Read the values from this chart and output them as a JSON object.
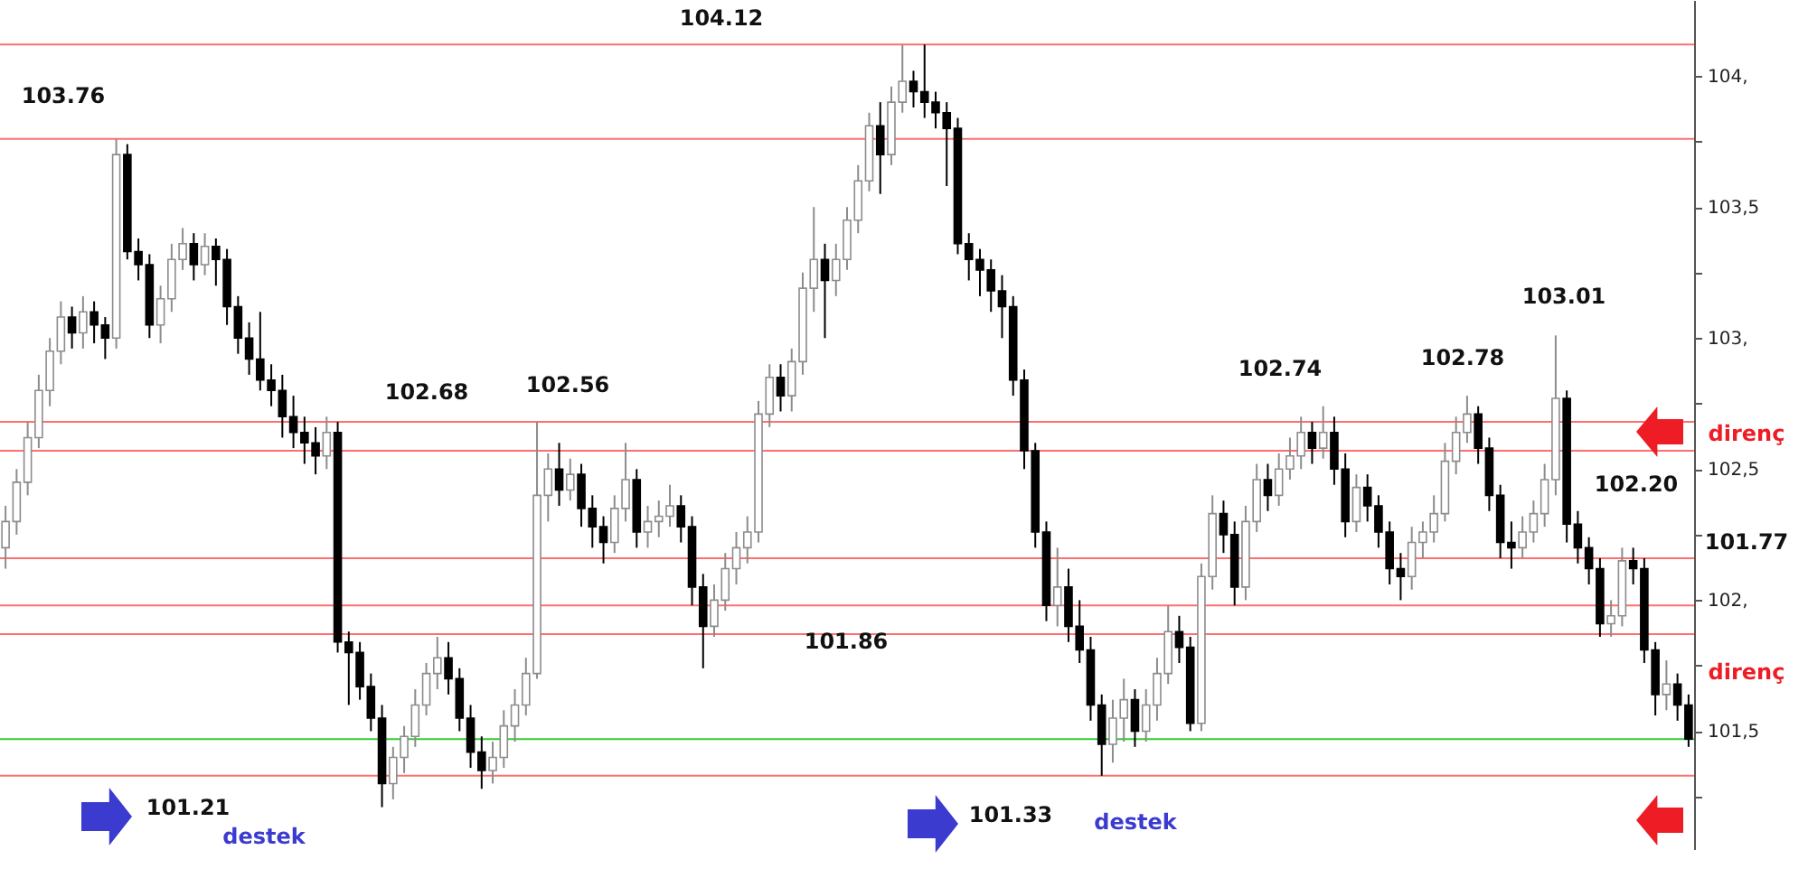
{
  "chart_data": {
    "type": "candlestick",
    "categories": [
      null,
      null,
      null,
      null,
      null,
      null,
      null,
      null,
      null,
      null,
      null,
      null,
      null,
      null,
      null,
      null,
      null,
      null,
      null,
      null,
      null,
      null,
      null,
      null,
      null,
      null,
      null,
      null,
      null,
      null,
      null,
      null,
      null,
      null,
      null,
      null,
      null,
      null,
      null,
      null,
      null,
      null,
      null,
      null,
      null,
      null,
      null,
      null,
      null,
      null,
      null,
      null,
      null,
      null,
      null,
      null,
      null,
      null,
      null,
      null,
      null,
      null,
      null,
      null,
      null,
      null,
      null,
      null,
      null,
      null,
      null,
      null,
      null,
      null,
      null,
      null,
      null,
      null,
      null,
      null,
      null,
      null,
      null,
      null,
      null,
      null,
      null,
      null,
      null,
      null,
      null,
      null,
      null,
      null,
      null,
      null,
      null,
      null,
      null,
      null,
      null,
      null,
      null,
      null,
      null,
      null,
      null,
      null,
      null,
      null,
      null,
      null,
      null,
      null,
      null,
      null,
      null,
      null,
      null,
      null,
      null,
      null,
      null,
      null,
      null,
      null,
      null,
      null,
      null,
      null,
      null,
      null,
      null,
      null,
      null,
      null,
      null,
      null,
      null,
      null,
      null,
      null,
      null,
      null,
      null,
      null,
      null,
      null,
      null,
      null,
      null,
      null,
      null
    ],
    "ohlc": [
      [
        102.2,
        102.36,
        102.12,
        102.3
      ],
      [
        102.3,
        102.5,
        102.25,
        102.45
      ],
      [
        102.45,
        102.68,
        102.4,
        102.62
      ],
      [
        102.62,
        102.86,
        102.58,
        102.8
      ],
      [
        102.8,
        103.0,
        102.74,
        102.95
      ],
      [
        102.95,
        103.14,
        102.9,
        103.08
      ],
      [
        103.08,
        103.12,
        102.96,
        103.02
      ],
      [
        103.02,
        103.16,
        102.96,
        103.1
      ],
      [
        103.1,
        103.14,
        102.98,
        103.05
      ],
      [
        103.05,
        103.08,
        102.92,
        103.0
      ],
      [
        103.0,
        103.76,
        102.96,
        103.7
      ],
      [
        103.7,
        103.74,
        103.3,
        103.33
      ],
      [
        103.33,
        103.38,
        103.22,
        103.28
      ],
      [
        103.28,
        103.32,
        103.0,
        103.05
      ],
      [
        103.05,
        103.2,
        102.98,
        103.15
      ],
      [
        103.15,
        103.36,
        103.1,
        103.3
      ],
      [
        103.3,
        103.42,
        103.26,
        103.36
      ],
      [
        103.36,
        103.4,
        103.22,
        103.28
      ],
      [
        103.28,
        103.4,
        103.24,
        103.35
      ],
      [
        103.35,
        103.38,
        103.2,
        103.3
      ],
      [
        103.3,
        103.34,
        103.05,
        103.12
      ],
      [
        103.12,
        103.16,
        102.94,
        103.0
      ],
      [
        103.0,
        103.06,
        102.86,
        102.92
      ],
      [
        102.92,
        103.1,
        102.8,
        102.84
      ],
      [
        102.84,
        102.9,
        102.74,
        102.8
      ],
      [
        102.8,
        102.86,
        102.62,
        102.7
      ],
      [
        102.7,
        102.78,
        102.58,
        102.64
      ],
      [
        102.64,
        102.7,
        102.52,
        102.6
      ],
      [
        102.6,
        102.66,
        102.48,
        102.55
      ],
      [
        102.55,
        102.7,
        102.5,
        102.64
      ],
      [
        102.64,
        102.68,
        101.8,
        101.84
      ],
      [
        101.84,
        101.88,
        101.6,
        101.8
      ],
      [
        101.8,
        101.84,
        101.62,
        101.67
      ],
      [
        101.67,
        101.72,
        101.5,
        101.55
      ],
      [
        101.55,
        101.6,
        101.21,
        101.3
      ],
      [
        101.3,
        101.44,
        101.24,
        101.4
      ],
      [
        101.4,
        101.52,
        101.34,
        101.48
      ],
      [
        101.48,
        101.66,
        101.44,
        101.6
      ],
      [
        101.6,
        101.76,
        101.56,
        101.72
      ],
      [
        101.72,
        101.86,
        101.66,
        101.78
      ],
      [
        101.78,
        101.84,
        101.64,
        101.7
      ],
      [
        101.7,
        101.74,
        101.5,
        101.55
      ],
      [
        101.55,
        101.6,
        101.36,
        101.42
      ],
      [
        101.42,
        101.48,
        101.28,
        101.35
      ],
      [
        101.35,
        101.46,
        101.3,
        101.4
      ],
      [
        101.4,
        101.58,
        101.36,
        101.52
      ],
      [
        101.52,
        101.66,
        101.46,
        101.6
      ],
      [
        101.6,
        101.78,
        101.56,
        101.72
      ],
      [
        101.72,
        102.68,
        101.7,
        102.4
      ],
      [
        102.4,
        102.56,
        102.3,
        102.5
      ],
      [
        102.5,
        102.6,
        102.36,
        102.42
      ],
      [
        102.42,
        102.54,
        102.38,
        102.48
      ],
      [
        102.48,
        102.52,
        102.28,
        102.35
      ],
      [
        102.35,
        102.4,
        102.2,
        102.28
      ],
      [
        102.28,
        102.32,
        102.14,
        102.22
      ],
      [
        102.22,
        102.4,
        102.18,
        102.35
      ],
      [
        102.35,
        102.6,
        102.3,
        102.46
      ],
      [
        102.46,
        102.5,
        102.2,
        102.26
      ],
      [
        102.26,
        102.36,
        102.2,
        102.3
      ],
      [
        102.3,
        102.38,
        102.24,
        102.32
      ],
      [
        102.32,
        102.44,
        102.28,
        102.36
      ],
      [
        102.36,
        102.4,
        102.22,
        102.28
      ],
      [
        102.28,
        102.32,
        101.98,
        102.05
      ],
      [
        102.05,
        102.1,
        101.74,
        101.9
      ],
      [
        101.9,
        102.06,
        101.86,
        102.0
      ],
      [
        102.0,
        102.18,
        101.96,
        102.12
      ],
      [
        102.12,
        102.26,
        102.06,
        102.2
      ],
      [
        102.2,
        102.32,
        102.14,
        102.26
      ],
      [
        102.26,
        102.76,
        102.22,
        102.71
      ],
      [
        102.71,
        102.9,
        102.66,
        102.85
      ],
      [
        102.85,
        102.9,
        102.72,
        102.78
      ],
      [
        102.78,
        102.96,
        102.72,
        102.91
      ],
      [
        102.91,
        103.25,
        102.86,
        103.19
      ],
      [
        103.19,
        103.5,
        103.1,
        103.3
      ],
      [
        103.3,
        103.36,
        103.0,
        103.22
      ],
      [
        103.22,
        103.36,
        103.16,
        103.3
      ],
      [
        103.3,
        103.5,
        103.26,
        103.45
      ],
      [
        103.45,
        103.66,
        103.4,
        103.6
      ],
      [
        103.6,
        103.86,
        103.56,
        103.81
      ],
      [
        103.81,
        103.9,
        103.55,
        103.7
      ],
      [
        103.7,
        103.96,
        103.66,
        103.9
      ],
      [
        103.9,
        104.12,
        103.86,
        103.98
      ],
      [
        103.98,
        104.02,
        103.88,
        103.94
      ],
      [
        103.94,
        104.12,
        103.84,
        103.9
      ],
      [
        103.9,
        103.94,
        103.8,
        103.86
      ],
      [
        103.86,
        103.9,
        103.58,
        103.8
      ],
      [
        103.8,
        103.84,
        103.32,
        103.36
      ],
      [
        103.36,
        103.4,
        103.22,
        103.3
      ],
      [
        103.3,
        103.34,
        103.16,
        103.26
      ],
      [
        103.26,
        103.3,
        103.1,
        103.18
      ],
      [
        103.18,
        103.24,
        103.0,
        103.12
      ],
      [
        103.12,
        103.16,
        102.78,
        102.84
      ],
      [
        102.84,
        102.88,
        102.5,
        102.57
      ],
      [
        102.57,
        102.6,
        102.2,
        102.26
      ],
      [
        102.26,
        102.3,
        101.92,
        101.98
      ],
      [
        101.98,
        102.2,
        101.9,
        102.05
      ],
      [
        102.05,
        102.12,
        101.84,
        101.9
      ],
      [
        101.9,
        102.0,
        101.76,
        101.81
      ],
      [
        101.81,
        101.86,
        101.54,
        101.6
      ],
      [
        101.6,
        101.64,
        101.33,
        101.45
      ],
      [
        101.45,
        101.62,
        101.38,
        101.55
      ],
      [
        101.55,
        101.7,
        101.46,
        101.62
      ],
      [
        101.62,
        101.66,
        101.44,
        101.5
      ],
      [
        101.5,
        101.66,
        101.46,
        101.6
      ],
      [
        101.6,
        101.78,
        101.54,
        101.72
      ],
      [
        101.72,
        101.98,
        101.68,
        101.88
      ],
      [
        101.88,
        101.94,
        101.76,
        101.82
      ],
      [
        101.82,
        101.86,
        101.5,
        101.53
      ],
      [
        101.53,
        102.14,
        101.5,
        102.09
      ],
      [
        102.09,
        102.4,
        102.04,
        102.33
      ],
      [
        102.33,
        102.38,
        102.18,
        102.25
      ],
      [
        102.25,
        102.3,
        101.98,
        102.05
      ],
      [
        102.05,
        102.36,
        102.0,
        102.3
      ],
      [
        102.3,
        102.52,
        102.26,
        102.46
      ],
      [
        102.46,
        102.52,
        102.34,
        102.4
      ],
      [
        102.4,
        102.56,
        102.36,
        102.5
      ],
      [
        102.5,
        102.62,
        102.46,
        102.55
      ],
      [
        102.55,
        102.7,
        102.5,
        102.64
      ],
      [
        102.64,
        102.68,
        102.52,
        102.58
      ],
      [
        102.58,
        102.74,
        102.54,
        102.64
      ],
      [
        102.64,
        102.7,
        102.44,
        102.5
      ],
      [
        102.5,
        102.56,
        102.24,
        102.3
      ],
      [
        102.3,
        102.48,
        102.26,
        102.43
      ],
      [
        102.43,
        102.48,
        102.3,
        102.36
      ],
      [
        102.36,
        102.4,
        102.2,
        102.26
      ],
      [
        102.26,
        102.3,
        102.06,
        102.12
      ],
      [
        102.12,
        102.18,
        102.0,
        102.09
      ],
      [
        102.09,
        102.28,
        102.04,
        102.22
      ],
      [
        102.22,
        102.3,
        102.16,
        102.26
      ],
      [
        102.26,
        102.4,
        102.22,
        102.33
      ],
      [
        102.33,
        102.6,
        102.3,
        102.53
      ],
      [
        102.53,
        102.7,
        102.48,
        102.64
      ],
      [
        102.64,
        102.78,
        102.6,
        102.71
      ],
      [
        102.71,
        102.74,
        102.52,
        102.58
      ],
      [
        102.58,
        102.62,
        102.34,
        102.4
      ],
      [
        102.4,
        102.44,
        102.16,
        102.22
      ],
      [
        102.22,
        102.3,
        102.12,
        102.2
      ],
      [
        102.2,
        102.32,
        102.16,
        102.26
      ],
      [
        102.26,
        102.38,
        102.22,
        102.33
      ],
      [
        102.33,
        102.52,
        102.28,
        102.46
      ],
      [
        102.46,
        103.01,
        102.4,
        102.77
      ],
      [
        102.77,
        102.8,
        102.22,
        102.29
      ],
      [
        102.29,
        102.34,
        102.14,
        102.2
      ],
      [
        102.2,
        102.24,
        102.06,
        102.12
      ],
      [
        102.12,
        102.16,
        101.86,
        101.91
      ],
      [
        101.91,
        102.0,
        101.86,
        101.94
      ],
      [
        101.94,
        102.2,
        101.9,
        102.15
      ],
      [
        102.15,
        102.2,
        102.06,
        102.12
      ],
      [
        102.12,
        102.16,
        101.76,
        101.81
      ],
      [
        101.81,
        101.84,
        101.56,
        101.64
      ],
      [
        101.64,
        101.77,
        101.58,
        101.68
      ],
      [
        101.68,
        101.72,
        101.54,
        101.6
      ],
      [
        101.6,
        101.64,
        101.44,
        101.47
      ]
    ],
    "ylim": [
      101.05,
      104.29
    ],
    "yticks": [
      {
        "value": 101.25,
        "label": null
      },
      {
        "value": 101.5,
        "label": "101,5"
      },
      {
        "value": 101.75,
        "label": null
      },
      {
        "value": 102,
        "label": "102,"
      },
      {
        "value": 102.25,
        "label": null
      },
      {
        "value": 102.5,
        "label": "102,5"
      },
      {
        "value": 102.75,
        "label": null
      },
      {
        "value": 103,
        "label": "103,"
      },
      {
        "value": 103.25,
        "label": null
      },
      {
        "value": 103.5,
        "label": "103,5"
      },
      {
        "value": 103.75,
        "label": null
      },
      {
        "value": 104,
        "label": "104,"
      }
    ],
    "ref_lines": [
      {
        "axis": "y",
        "value": 103.76,
        "color": "#ff6f6f"
      },
      {
        "axis": "y",
        "value": 104.12,
        "color": "#ff6f6f"
      },
      {
        "axis": "y",
        "value": 102.68,
        "color": "#ff6f6f"
      },
      {
        "axis": "y",
        "value": 102.57,
        "color": "#ff6f6f"
      },
      {
        "axis": "y",
        "value": 102.16,
        "color": "#ff6f6f"
      },
      {
        "axis": "y",
        "value": 101.98,
        "color": "#ff6f6f"
      },
      {
        "axis": "y",
        "value": 101.87,
        "color": "#ff6f6f"
      },
      {
        "axis": "y",
        "value": 101.33,
        "color": "#ff6f6f"
      },
      {
        "axis": "y",
        "value": 101.47,
        "color": "#33cc33"
      }
    ],
    "annotations": [
      "103.76",
      "104.12",
      "102.68",
      "102.56",
      "101.86",
      "102.74",
      "102.78",
      "103.01",
      "102.20",
      "101.77",
      "101.21",
      "101.33",
      "destek",
      "destek",
      "direnç",
      "direnç"
    ]
  }
}
